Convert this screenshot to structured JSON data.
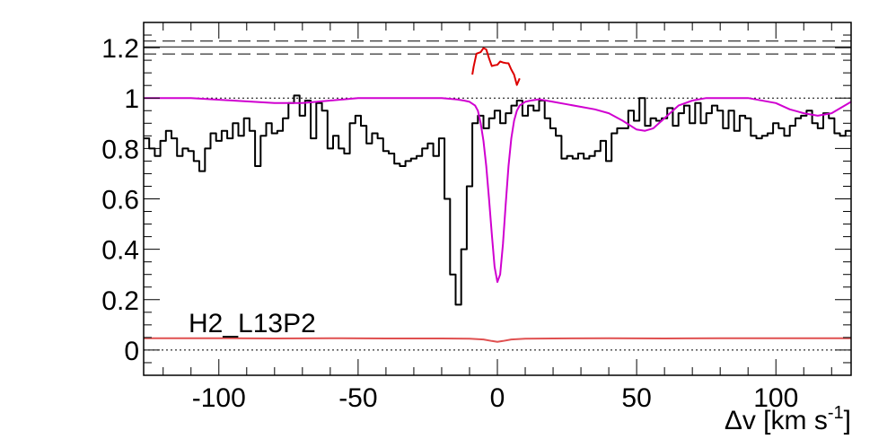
{
  "chart_data": {
    "type": "line",
    "title": "",
    "xlabel": "Δv [km s⁻¹]",
    "xlabel_parts": {
      "main": "Δv [km s",
      "sup": "-1",
      "close": "]"
    },
    "ylabel": "",
    "xlim": [
      -127,
      127
    ],
    "ylim": [
      -0.1,
      1.3
    ],
    "x_ticks": [
      -100,
      -50,
      0,
      50,
      100
    ],
    "x_tick_labels": [
      "-100",
      "-50",
      "0",
      "50",
      "100"
    ],
    "y_ticks": [
      0,
      0.2,
      0.4,
      0.6,
      0.8,
      1
    ],
    "y_tick_labels": [
      "0",
      "0.2",
      "0.4",
      "0.6",
      "0.8",
      "1"
    ],
    "y_extra_tick_label": {
      "value": 1.2,
      "label": "1.2"
    },
    "annotation": "H2_L13P2",
    "reference_lines": [
      {
        "name": "continuum",
        "y": 1.0,
        "style": "dotted"
      },
      {
        "name": "zero",
        "y": 0.0,
        "style": "dotted"
      },
      {
        "name": "upper-1",
        "y": 1.226,
        "style": "dashed"
      },
      {
        "name": "upper-2",
        "y": 1.203,
        "style": "solid"
      },
      {
        "name": "upper-3",
        "y": 1.175,
        "style": "dashed"
      }
    ],
    "series": [
      {
        "id": "observed",
        "style": "step",
        "color": "#000000",
        "x_start": -127,
        "bin_width": 2,
        "y": [
          0.84,
          0.8,
          0.77,
          0.83,
          0.87,
          0.84,
          0.77,
          0.8,
          0.79,
          0.75,
          0.71,
          0.8,
          0.86,
          0.83,
          0.87,
          0.84,
          0.9,
          0.85,
          0.92,
          0.87,
          0.73,
          0.85,
          0.9,
          0.86,
          0.87,
          0.92,
          0.98,
          1.01,
          0.93,
          0.99,
          0.84,
          0.98,
          0.95,
          0.8,
          0.85,
          0.8,
          0.78,
          0.9,
          0.93,
          0.89,
          0.82,
          0.86,
          0.84,
          0.79,
          0.78,
          0.74,
          0.73,
          0.75,
          0.76,
          0.77,
          0.8,
          0.82,
          0.77,
          0.84,
          0.6,
          0.3,
          0.18,
          0.4,
          0.65,
          0.9,
          0.93,
          0.88,
          0.92,
          0.95,
          0.9,
          0.94,
          0.97,
          0.99,
          0.93,
          0.97,
          0.95,
          0.99,
          0.92,
          0.88,
          0.85,
          0.76,
          0.77,
          0.76,
          0.78,
          0.76,
          0.77,
          0.79,
          0.83,
          0.75,
          0.86,
          0.88,
          0.88,
          0.95,
          0.91,
          1.0,
          0.89,
          0.92,
          0.91,
          0.92,
          0.96,
          0.89,
          0.94,
          0.97,
          0.9,
          0.98,
          0.9,
          0.94,
          0.97,
          0.95,
          0.88,
          0.95,
          0.87,
          0.93,
          0.92,
          0.85,
          0.84,
          0.85,
          0.86,
          0.9,
          0.88,
          0.85,
          0.89,
          0.92,
          0.93,
          0.95,
          0.9,
          0.88,
          0.94,
          0.92,
          0.86,
          0.85,
          0.87
        ]
      },
      {
        "id": "model",
        "style": "smooth",
        "color": "#d000d0",
        "x": [
          -127,
          -110,
          -95,
          -80,
          -70,
          -60,
          -50,
          -40,
          -30,
          -20,
          -15,
          -12,
          -10,
          -8,
          -7,
          -6,
          -5,
          -4,
          -3,
          -2,
          -1,
          0,
          1,
          2,
          3,
          4,
          5,
          6,
          7,
          8,
          10,
          12,
          15,
          20,
          25,
          30,
          35,
          40,
          45,
          50,
          53,
          56,
          60,
          65,
          70,
          75,
          80,
          90,
          100,
          105,
          110,
          115,
          120,
          127
        ],
        "y": [
          1.0,
          1.0,
          0.99,
          0.98,
          0.98,
          0.99,
          1.0,
          1.0,
          1.0,
          1.0,
          0.995,
          0.99,
          0.985,
          0.97,
          0.95,
          0.9,
          0.83,
          0.73,
          0.6,
          0.46,
          0.33,
          0.27,
          0.3,
          0.42,
          0.58,
          0.73,
          0.84,
          0.91,
          0.95,
          0.97,
          0.985,
          0.99,
          0.995,
          0.985,
          0.975,
          0.965,
          0.955,
          0.94,
          0.91,
          0.875,
          0.87,
          0.88,
          0.92,
          0.97,
          0.99,
          1.0,
          1.0,
          1.0,
          0.98,
          0.955,
          0.94,
          0.93,
          0.94,
          0.985
        ]
      },
      {
        "id": "red-fragment",
        "style": "polyline",
        "color": "#dd0000",
        "x": [
          -9.0,
          -8.5,
          -7.5,
          -6.0,
          -5.0,
          -4.0,
          -3.0,
          -2.0,
          -1.0,
          0.0,
          1.0,
          2.0,
          3.0,
          4.0,
          5.0,
          6.0,
          7.0,
          8.0
        ],
        "y": [
          1.093,
          1.125,
          1.176,
          1.182,
          1.198,
          1.193,
          1.158,
          1.127,
          1.13,
          1.132,
          1.145,
          1.141,
          1.139,
          1.138,
          1.113,
          1.093,
          1.052,
          1.078
        ]
      },
      {
        "id": "residual",
        "style": "smooth",
        "color": "#e05050",
        "x": [
          -127,
          -100,
          -80,
          -60,
          -40,
          -20,
          -10,
          -5,
          -2,
          0,
          2,
          5,
          10,
          20,
          40,
          60,
          80,
          100,
          127
        ],
        "y": [
          0.047,
          0.047,
          0.046,
          0.047,
          0.046,
          0.046,
          0.045,
          0.042,
          0.036,
          0.033,
          0.036,
          0.042,
          0.045,
          0.046,
          0.047,
          0.046,
          0.047,
          0.047,
          0.047
        ]
      }
    ]
  }
}
